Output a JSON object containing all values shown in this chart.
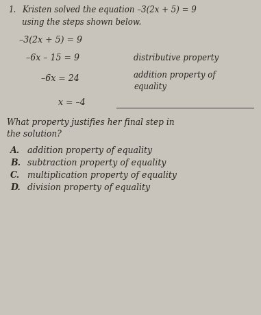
{
  "background_color": "#c8c4bc",
  "title_number": "1.",
  "intro_line1": "Kristen solved the equation –3(2x + 5) = 9",
  "intro_line2": "using the steps shown below.",
  "eq1": "–3(2x + 5) = 9",
  "eq2": "–6x – 15 = 9",
  "eq2_prop": "distributive property",
  "eq3": "–6x = 24",
  "eq3_prop_line1": "addition property of",
  "eq3_prop_line2": "equality",
  "eq4": "x = –4",
  "question_line1": "What property justifies her final step in",
  "question_line2": "the solution?",
  "choice_A_label": "A.",
  "choice_A_text": "addition property of equality",
  "choice_B_label": "B.",
  "choice_B_text": "subtraction property of equality",
  "choice_C_label": "C.",
  "choice_C_text": "multiplication property of equality",
  "choice_D_label": "D.",
  "choice_D_text": "division property of equality",
  "text_color": "#2a2520",
  "line_color": "#555050",
  "fs_intro": 8.5,
  "fs_eq": 9.0,
  "fs_prop": 8.5,
  "fs_q": 8.8,
  "fs_ch": 9.0
}
